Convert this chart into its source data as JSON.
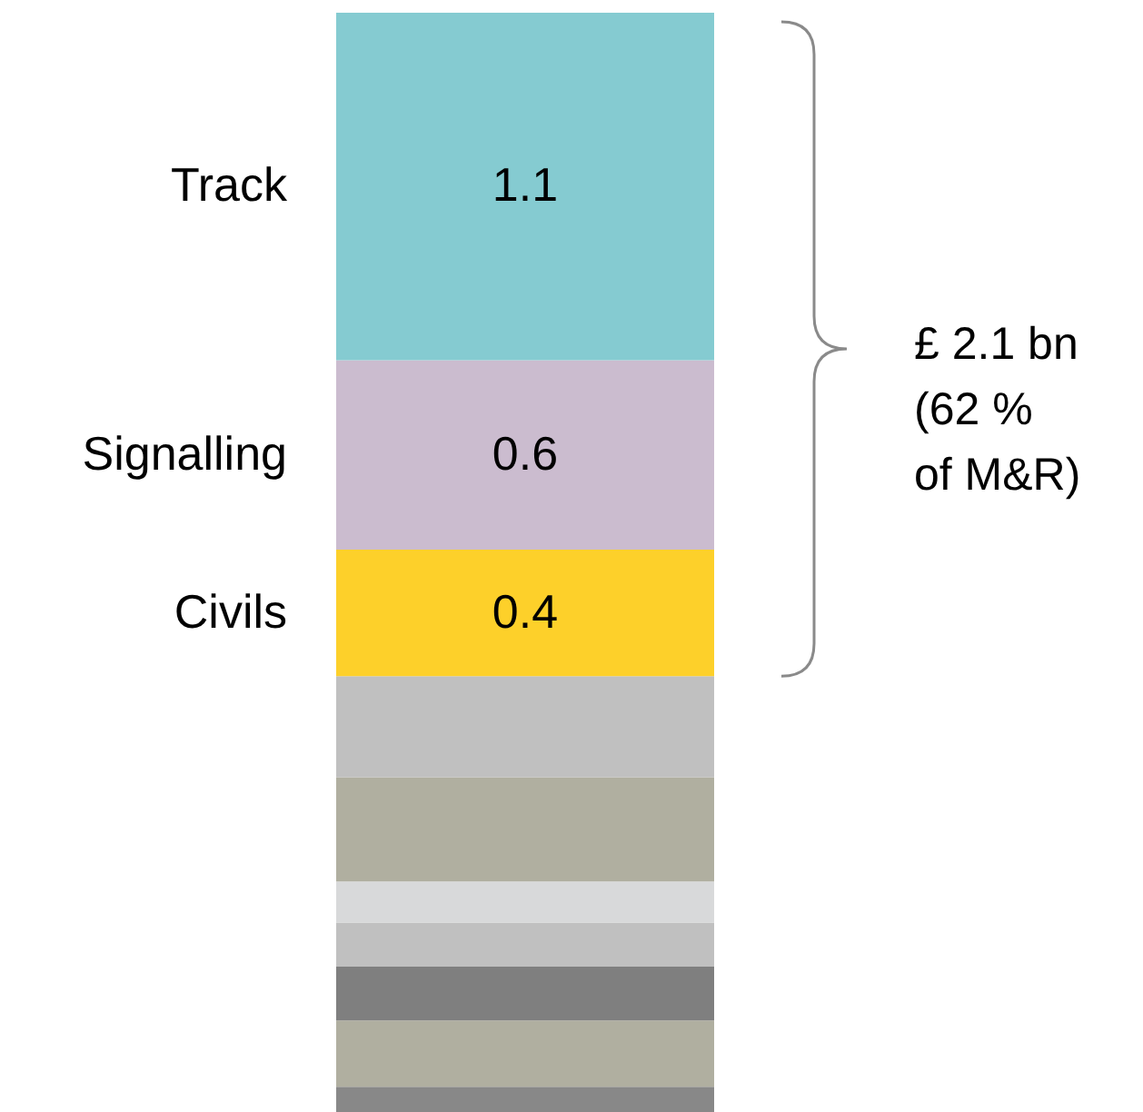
{
  "chart_data": {
    "type": "bar",
    "stacked": true,
    "categories": [
      null
    ],
    "series": [
      {
        "color": "#888888",
        "values": [
          0.08
        ]
      },
      {
        "color": "#b0afa0",
        "values": [
          0.21
        ]
      },
      {
        "color": "#7f7f7f",
        "values": [
          0.17
        ]
      },
      {
        "color": "#c0c0c0",
        "values": [
          0.14
        ]
      },
      {
        "color": "#d8d9da",
        "values": [
          0.13
        ]
      },
      {
        "color": "#b0afa0",
        "values": [
          0.33
        ]
      },
      {
        "color": "#c0c0c0",
        "values": [
          0.32
        ]
      },
      {
        "name": "Civils",
        "color": "#fdd02a",
        "values": [
          0.4
        ],
        "value_labels": [
          "0.4"
        ]
      },
      {
        "name": "Signalling",
        "color": "#cbbccf",
        "values": [
          0.6
        ],
        "value_labels": [
          "0.6"
        ]
      },
      {
        "name": "Track",
        "color": "#85cbd1",
        "values": [
          1.1
        ],
        "value_labels": [
          "1.1"
        ]
      }
    ],
    "annotations": [
      "£ 2.1 bn\n(62 %\nof M&R)"
    ]
  }
}
